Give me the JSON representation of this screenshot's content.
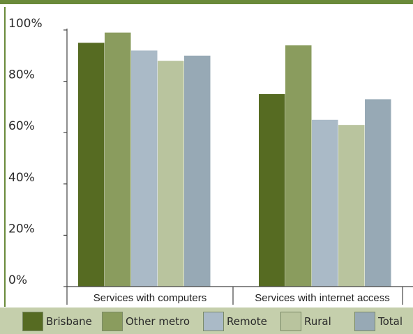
{
  "chart_data": {
    "type": "bar",
    "categories": [
      "Services with computers",
      "Services with internet access"
    ],
    "series": [
      {
        "name": "Brisbane",
        "values": [
          95,
          75
        ],
        "color": "#566b22"
      },
      {
        "name": "Other metro",
        "values": [
          99,
          94
        ],
        "color": "#8a9c5e"
      },
      {
        "name": "Remote",
        "values": [
          92,
          65
        ],
        "color": "#aabac7"
      },
      {
        "name": "Rural",
        "values": [
          88,
          63
        ],
        "color": "#b9c49e"
      },
      {
        "name": "Total",
        "values": [
          90,
          73
        ],
        "color": "#97a9b5"
      }
    ],
    "y_ticks": [
      "0%",
      "20%",
      "40%",
      "60%",
      "80%",
      "100%"
    ],
    "ylim": [
      0,
      100
    ],
    "legend_position": "bottom",
    "grid": false
  }
}
